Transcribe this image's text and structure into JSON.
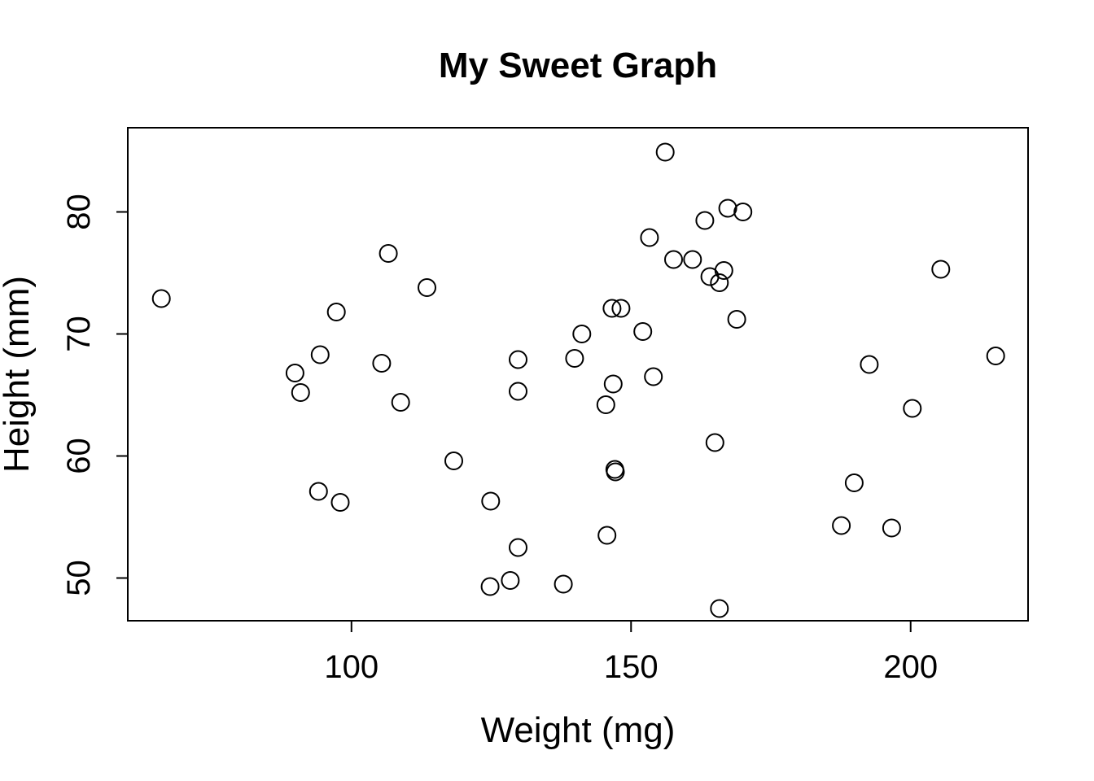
{
  "chart_data": {
    "type": "scatter",
    "title": "My Sweet Graph",
    "xlabel": "Weight (mg)",
    "ylabel": "Height (mm)",
    "xlim": [
      60,
      221
    ],
    "ylim": [
      46.5,
      86.9
    ],
    "x_ticks": [
      100,
      150,
      200
    ],
    "y_ticks": [
      50,
      60,
      70,
      80
    ],
    "grid": false,
    "marker": "open-circle",
    "series": [
      {
        "points": [
          [
            66,
            72.9
          ],
          [
            89.9,
            66.8
          ],
          [
            90.9,
            65.2
          ],
          [
            94.1,
            57.1
          ],
          [
            94.4,
            68.3
          ],
          [
            97.3,
            71.8
          ],
          [
            98,
            56.2
          ],
          [
            105.4,
            67.6
          ],
          [
            106.6,
            76.6
          ],
          [
            108.8,
            64.4
          ],
          [
            113.5,
            73.8
          ],
          [
            118.3,
            59.6
          ],
          [
            124.8,
            49.3
          ],
          [
            124.9,
            56.3
          ],
          [
            128.4,
            49.8
          ],
          [
            129.8,
            67.9
          ],
          [
            129.8,
            65.3
          ],
          [
            129.8,
            52.5
          ],
          [
            137.9,
            49.5
          ],
          [
            139.9,
            68
          ],
          [
            141.2,
            70
          ],
          [
            145.5,
            64.2
          ],
          [
            145.7,
            53.5
          ],
          [
            146.6,
            72.1
          ],
          [
            146.8,
            65.9
          ],
          [
            147.1,
            58.9
          ],
          [
            147.2,
            58.7
          ],
          [
            148.2,
            72.1
          ],
          [
            152.1,
            70.2
          ],
          [
            153.3,
            77.9
          ],
          [
            154,
            66.5
          ],
          [
            156.1,
            84.9
          ],
          [
            157.6,
            76.1
          ],
          [
            161,
            76.1
          ],
          [
            163.2,
            79.3
          ],
          [
            164.1,
            74.7
          ],
          [
            165,
            61.1
          ],
          [
            165.8,
            74.2
          ],
          [
            165.8,
            47.5
          ],
          [
            166.6,
            75.2
          ],
          [
            167.3,
            80.3
          ],
          [
            168.9,
            71.2
          ],
          [
            170,
            80
          ],
          [
            187.6,
            54.3
          ],
          [
            189.9,
            57.8
          ],
          [
            192.6,
            67.5
          ],
          [
            196.6,
            54.1
          ],
          [
            200.3,
            63.9
          ],
          [
            205.4,
            75.3
          ],
          [
            215.2,
            68.2
          ]
        ]
      }
    ]
  }
}
